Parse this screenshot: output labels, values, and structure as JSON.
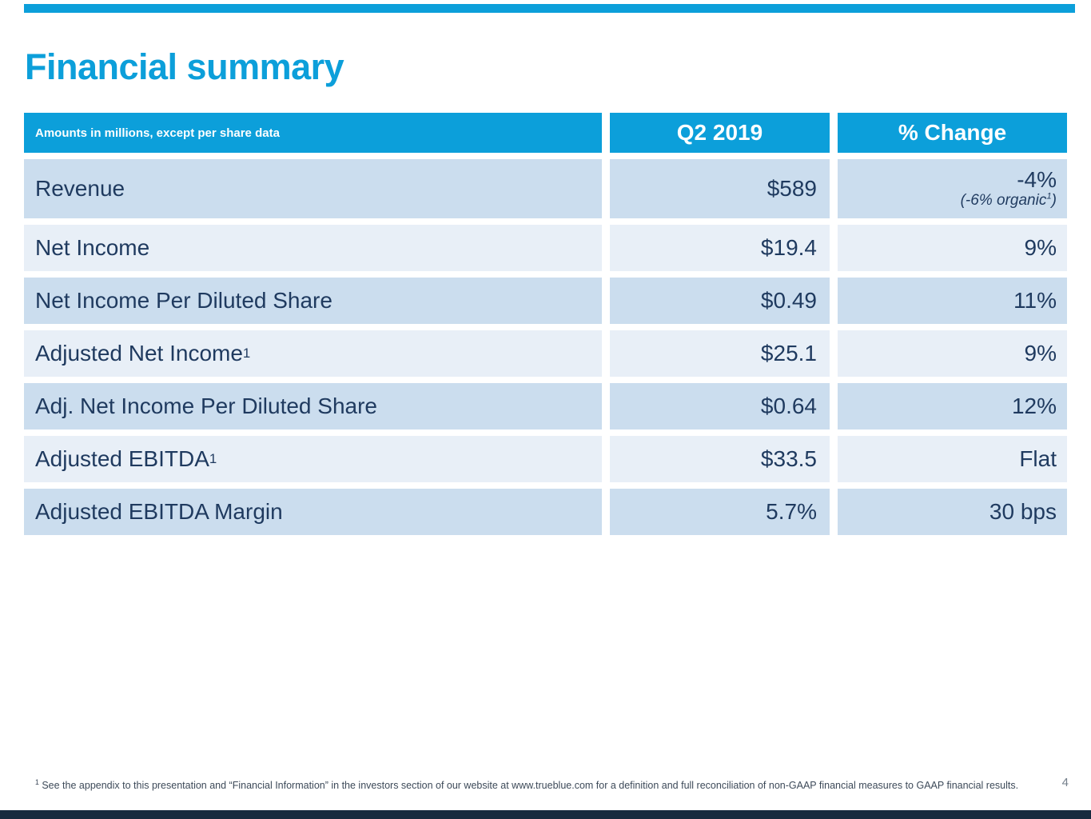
{
  "title": "Financial summary",
  "colors": {
    "accent_blue": "#0C9FDA",
    "row_dark": "#CBDDEE",
    "row_light": "#E8EFF7",
    "text_navy": "#1F3A5F",
    "footer_bar_navy": "#172A3F",
    "page_number_gray": "#75808C"
  },
  "table": {
    "caption": "Amounts in millions, except per share data",
    "columns": {
      "period": "Q2 2019",
      "change": "% Change"
    },
    "rows": [
      {
        "label": "Revenue",
        "label_sup": "",
        "value": "$589",
        "change": "-4%",
        "change_note_pre": "(-6% organic",
        "change_note_sup": "1",
        "change_note_post": ")"
      },
      {
        "label": "Net Income",
        "label_sup": "",
        "value": "$19.4",
        "change": "9%"
      },
      {
        "label": "Net Income Per Diluted Share",
        "label_sup": "",
        "value": "$0.49",
        "change": "11%"
      },
      {
        "label": "Adjusted Net Income",
        "label_sup": "1",
        "value": "$25.1",
        "change": "9%"
      },
      {
        "label": "Adj. Net Income Per Diluted Share",
        "label_sup": "",
        "value": "$0.64",
        "change": "12%"
      },
      {
        "label": "Adjusted EBITDA",
        "label_sup": "1",
        "value": "$33.5",
        "change": "Flat"
      },
      {
        "label": "Adjusted EBITDA Margin",
        "label_sup": "",
        "value": "5.7%",
        "change": "30 bps"
      }
    ]
  },
  "footnote": {
    "sup": "1",
    "text": " See the appendix to this presentation and “Financial Information” in the investors section of our website at www.trueblue.com for a definition and full reconciliation of non-GAAP financial measures to GAAP financial results."
  },
  "page_number": "4"
}
